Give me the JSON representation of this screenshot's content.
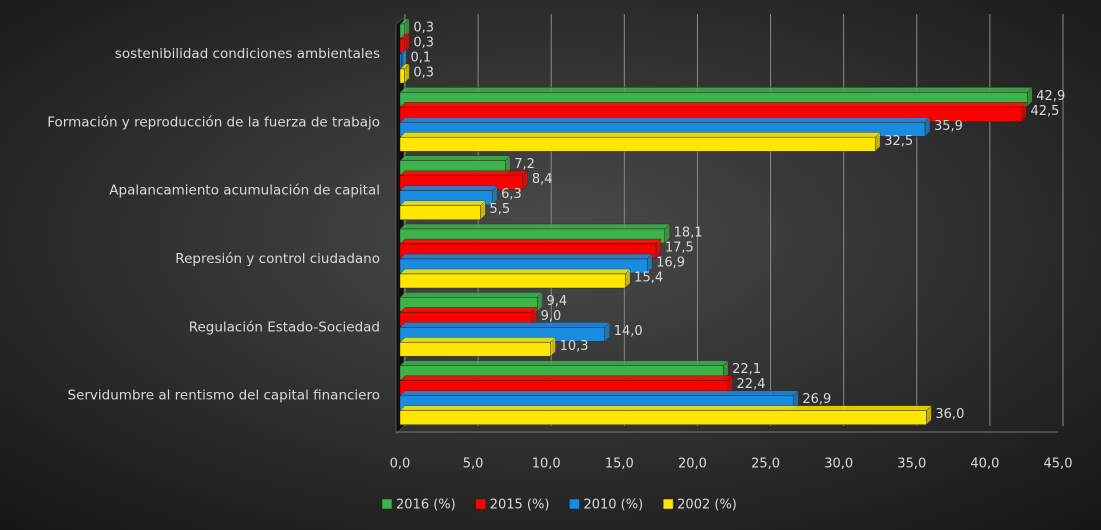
{
  "chart_data": {
    "type": "bar",
    "orientation": "horizontal",
    "categories": [
      "sostenibilidad condiciones ambientales",
      "Formación y reproducción de la fuerza de trabajo",
      "Apalancamiento acumulación de capital",
      "Represión y control ciudadano",
      "Regulación Estado-Sociedad",
      "Servidumbre al rentismo del capital financiero"
    ],
    "series": [
      {
        "name": "2016 (%)",
        "color": "#3cb44b",
        "values": [
          0.3,
          42.9,
          7.2,
          18.1,
          9.4,
          22.1
        ],
        "value_labels": [
          "0,3",
          "42,9",
          "7,2",
          "18,1",
          "9,4",
          "22,1"
        ]
      },
      {
        "name": "2015 (%)",
        "color": "#ff0000",
        "values": [
          0.3,
          42.5,
          8.4,
          17.5,
          9.0,
          22.4
        ],
        "value_labels": [
          "0,3",
          "42,5",
          "8,4",
          "17,5",
          "9,0",
          "22,4"
        ]
      },
      {
        "name": "2010 (%)",
        "color": "#1a8ce0",
        "values": [
          0.1,
          35.9,
          6.3,
          16.9,
          14.0,
          26.9
        ],
        "value_labels": [
          "0,1",
          "35,9",
          "6,3",
          "16,9",
          "14,0",
          "26,9"
        ]
      },
      {
        "name": "2002 (%)",
        "color": "#ffe600",
        "values": [
          0.3,
          32.5,
          5.5,
          15.4,
          10.3,
          36.0
        ],
        "value_labels": [
          "0,3",
          "32,5",
          "5,5",
          "15,4",
          "10,3",
          "36,0"
        ]
      }
    ],
    "xlim": [
      0,
      45
    ],
    "xticks": [
      {
        "value": 0,
        "label": "0,0"
      },
      {
        "value": 5,
        "label": "5,0"
      },
      {
        "value": 10,
        "label": "10,0"
      },
      {
        "value": 15,
        "label": "15,0"
      },
      {
        "value": 20,
        "label": "20,0"
      },
      {
        "value": 25,
        "label": "25,0"
      },
      {
        "value": 30,
        "label": "30,0"
      },
      {
        "value": 35,
        "label": "35,0"
      },
      {
        "value": 40,
        "label": "40,0"
      },
      {
        "value": 45,
        "label": "45,0"
      }
    ],
    "grid": true,
    "legend": "bottom"
  }
}
